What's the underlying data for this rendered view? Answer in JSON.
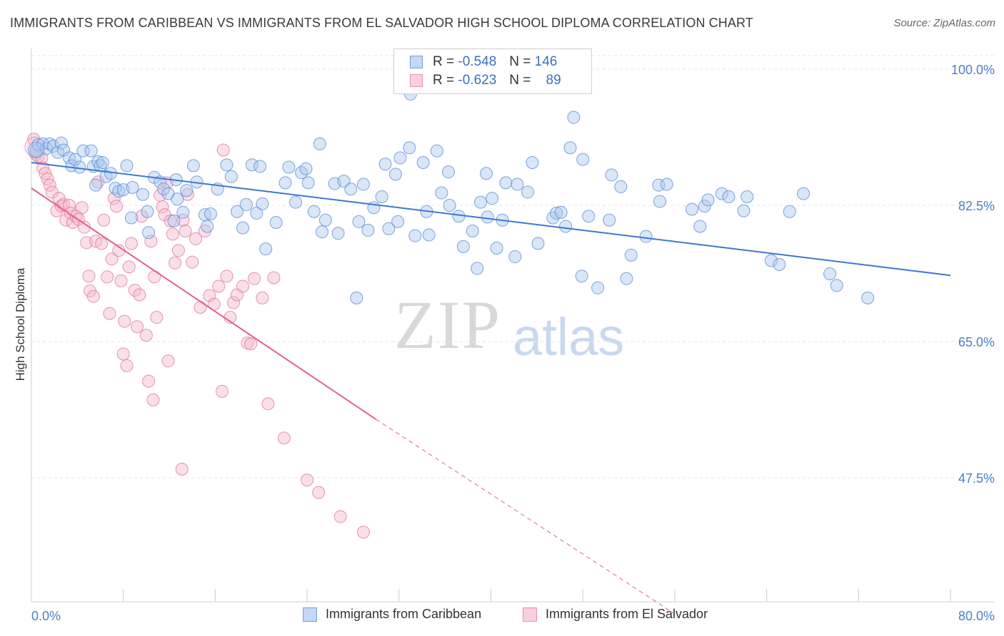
{
  "header": {
    "title": "IMMIGRANTS FROM CARIBBEAN VS IMMIGRANTS FROM EL SALVADOR HIGH SCHOOL DIPLOMA CORRELATION CHART",
    "source": "Source: ZipAtlas.com"
  },
  "watermark": {
    "zip": "ZIP",
    "atlas": "atlas"
  },
  "legend": {
    "rows": [
      {
        "r_label": "R =",
        "r_value": "-0.548",
        "n_label": "N =",
        "n_value": "146"
      },
      {
        "r_label": "R =",
        "r_value": "-0.623",
        "n_label": "N =",
        "n_value": "89"
      }
    ]
  },
  "bottom_legend": {
    "items": [
      {
        "label": "Immigrants from Caribbean"
      },
      {
        "label": "Immigrants from El Salvador"
      }
    ]
  },
  "colors": {
    "blue_fill": "#aac8f0",
    "blue_stroke": "#5b8fd6",
    "blue_line": "#3c78d0",
    "pink_fill": "#f6b8cb",
    "pink_stroke": "#e0799c",
    "pink_line": "#e0628f",
    "grid": "#e6e6e6",
    "axis_text": "#4a7fc9"
  },
  "chart_data": {
    "type": "scatter",
    "title": "IMMIGRANTS FROM CARIBBEAN VS IMMIGRANTS FROM EL SALVADOR HIGH SCHOOL DIPLOMA CORRELATION CHART",
    "xlabel": "",
    "ylabel": "High School Diploma",
    "xlim": [
      0,
      80
    ],
    "ylim": [
      30,
      102
    ],
    "x_tick_labels": [
      "0.0%",
      "80.0%"
    ],
    "y_tick_labels": [
      "100.0%",
      "82.5%",
      "65.0%",
      "47.5%"
    ],
    "y_ticks": [
      100,
      82.5,
      65,
      47.5
    ],
    "grid": true,
    "legend_position": "top-center",
    "series": [
      {
        "name": "Immigrants from Caribbean",
        "r": -0.548,
        "n": 146,
        "trend": {
          "x": [
            0,
            80
          ],
          "y": [
            88.0,
            73.5
          ]
        },
        "points": [
          [
            0.4,
            89.5
          ],
          [
            0.6,
            90.3
          ],
          [
            1.0,
            90.4
          ],
          [
            1.3,
            89.8
          ],
          [
            1.6,
            90.4
          ],
          [
            1.9,
            90.1
          ],
          [
            2.3,
            89.3
          ],
          [
            2.6,
            90.5
          ],
          [
            2.8,
            89.6
          ],
          [
            3.3,
            88.6
          ],
          [
            3.5,
            87.6
          ],
          [
            3.8,
            88.4
          ],
          [
            4.2,
            87.4
          ],
          [
            4.5,
            89.5
          ],
          [
            5.2,
            89.5
          ],
          [
            5.4,
            87.5
          ],
          [
            5.6,
            85.1
          ],
          [
            5.8,
            88.1
          ],
          [
            6.0,
            87.6
          ],
          [
            6.2,
            88.0
          ],
          [
            6.5,
            86.2
          ],
          [
            6.9,
            86.6
          ],
          [
            7.3,
            84.7
          ],
          [
            7.6,
            84.3
          ],
          [
            8.0,
            84.5
          ],
          [
            8.3,
            87.6
          ],
          [
            8.8,
            84.8
          ],
          [
            8.7,
            80.9
          ],
          [
            9.7,
            83.9
          ],
          [
            10.1,
            81.7
          ],
          [
            10.2,
            79.0
          ],
          [
            10.7,
            86.1
          ],
          [
            11.2,
            85.5
          ],
          [
            11.5,
            84.6
          ],
          [
            11.9,
            84.0
          ],
          [
            12.4,
            80.5
          ],
          [
            12.6,
            85.8
          ],
          [
            12.7,
            83.3
          ],
          [
            13.2,
            81.6
          ],
          [
            13.5,
            84.4
          ],
          [
            14.1,
            87.6
          ],
          [
            14.4,
            85.5
          ],
          [
            15.1,
            81.3
          ],
          [
            15.3,
            79.8
          ],
          [
            15.6,
            81.4
          ],
          [
            16.2,
            84.6
          ],
          [
            17.0,
            87.7
          ],
          [
            17.4,
            86.2
          ],
          [
            17.9,
            81.7
          ],
          [
            18.4,
            79.6
          ],
          [
            18.7,
            82.6
          ],
          [
            19.2,
            87.7
          ],
          [
            19.6,
            81.5
          ],
          [
            19.9,
            87.5
          ],
          [
            20.1,
            82.7
          ],
          [
            20.4,
            76.9
          ],
          [
            21.3,
            80.3
          ],
          [
            22.1,
            85.4
          ],
          [
            22.4,
            87.4
          ],
          [
            23.0,
            82.9
          ],
          [
            23.5,
            86.7
          ],
          [
            23.9,
            87.2
          ],
          [
            24.1,
            85.4
          ],
          [
            24.6,
            81.7
          ],
          [
            25.1,
            90.4
          ],
          [
            25.3,
            79.1
          ],
          [
            25.6,
            80.6
          ],
          [
            26.4,
            85.3
          ],
          [
            26.7,
            78.9
          ],
          [
            27.2,
            85.6
          ],
          [
            27.8,
            84.6
          ],
          [
            28.3,
            70.6
          ],
          [
            28.5,
            80.4
          ],
          [
            28.9,
            85.2
          ],
          [
            29.3,
            79.3
          ],
          [
            29.8,
            82.2
          ],
          [
            30.5,
            83.6
          ],
          [
            30.8,
            87.8
          ],
          [
            31.1,
            79.5
          ],
          [
            31.7,
            86.5
          ],
          [
            31.9,
            80.4
          ],
          [
            32.1,
            88.6
          ],
          [
            32.9,
            89.9
          ],
          [
            33.0,
            96.8
          ],
          [
            33.4,
            78.6
          ],
          [
            34.1,
            88.0
          ],
          [
            34.4,
            81.7
          ],
          [
            34.6,
            78.7
          ],
          [
            35.3,
            89.5
          ],
          [
            35.7,
            84.1
          ],
          [
            36.3,
            86.8
          ],
          [
            36.4,
            82.5
          ],
          [
            37.2,
            81.1
          ],
          [
            37.6,
            77.2
          ],
          [
            38.4,
            79.2
          ],
          [
            38.8,
            74.4
          ],
          [
            39.1,
            82.9
          ],
          [
            39.6,
            86.6
          ],
          [
            39.7,
            81.0
          ],
          [
            40.1,
            83.4
          ],
          [
            40.5,
            77.0
          ],
          [
            41.0,
            80.6
          ],
          [
            41.3,
            85.4
          ],
          [
            42.1,
            75.9
          ],
          [
            42.3,
            85.2
          ],
          [
            43.2,
            84.2
          ],
          [
            43.6,
            88.0
          ],
          [
            44.1,
            77.6
          ],
          [
            45.4,
            80.9
          ],
          [
            45.7,
            81.5
          ],
          [
            46.1,
            81.6
          ],
          [
            46.5,
            79.8
          ],
          [
            46.9,
            89.9
          ],
          [
            47.2,
            93.8
          ],
          [
            47.9,
            73.4
          ],
          [
            48.0,
            88.4
          ],
          [
            48.5,
            81.1
          ],
          [
            49.3,
            71.9
          ],
          [
            50.3,
            80.6
          ],
          [
            50.5,
            86.4
          ],
          [
            51.3,
            84.9
          ],
          [
            51.8,
            73.1
          ],
          [
            52.2,
            76.1
          ],
          [
            53.5,
            78.5
          ],
          [
            54.6,
            85.1
          ],
          [
            54.7,
            83.0
          ],
          [
            55.3,
            85.2
          ],
          [
            57.5,
            82.0
          ],
          [
            58.2,
            79.8
          ],
          [
            58.6,
            82.4
          ],
          [
            58.9,
            83.2
          ],
          [
            60.1,
            84.0
          ],
          [
            60.7,
            83.6
          ],
          [
            62.0,
            81.8
          ],
          [
            62.3,
            83.6
          ],
          [
            64.4,
            75.4
          ],
          [
            65.1,
            74.9
          ],
          [
            66.0,
            81.7
          ],
          [
            67.2,
            84.0
          ],
          [
            69.5,
            73.7
          ],
          [
            70.1,
            72.2
          ],
          [
            72.8,
            70.6
          ]
        ]
      },
      {
        "name": "Immigrants from El Salvador",
        "r": -0.623,
        "n": 89,
        "trend": {
          "x": [
            0,
            30
          ],
          "y": [
            84.7,
            55.0
          ]
        },
        "trend_dashed": {
          "x": [
            30,
            56.0
          ],
          "y": [
            55.0,
            30.0
          ]
        },
        "points": [
          [
            0.2,
            91.0
          ],
          [
            0.4,
            89.0
          ],
          [
            0.6,
            88.8
          ],
          [
            0.9,
            88.6
          ],
          [
            1.0,
            87.3
          ],
          [
            1.2,
            86.6
          ],
          [
            1.4,
            85.9
          ],
          [
            1.6,
            85.1
          ],
          [
            1.8,
            84.2
          ],
          [
            2.2,
            81.8
          ],
          [
            2.4,
            83.4
          ],
          [
            2.6,
            82.4
          ],
          [
            2.8,
            82.6
          ],
          [
            3.0,
            80.6
          ],
          [
            3.3,
            82.5
          ],
          [
            3.4,
            81.5
          ],
          [
            3.6,
            80.3
          ],
          [
            3.9,
            81.1
          ],
          [
            4.1,
            80.7
          ],
          [
            4.4,
            82.2
          ],
          [
            4.6,
            79.7
          ],
          [
            4.8,
            77.7
          ],
          [
            5.0,
            73.4
          ],
          [
            5.1,
            71.5
          ],
          [
            5.4,
            70.8
          ],
          [
            5.6,
            77.9
          ],
          [
            5.8,
            85.5
          ],
          [
            6.1,
            77.6
          ],
          [
            6.3,
            80.6
          ],
          [
            6.6,
            73.3
          ],
          [
            6.8,
            68.6
          ],
          [
            7.0,
            75.6
          ],
          [
            7.2,
            83.4
          ],
          [
            7.4,
            82.4
          ],
          [
            7.6,
            76.7
          ],
          [
            7.8,
            72.8
          ],
          [
            8.1,
            67.6
          ],
          [
            8.3,
            61.9
          ],
          [
            8.5,
            74.6
          ],
          [
            8.7,
            77.6
          ],
          [
            9.0,
            71.6
          ],
          [
            9.2,
            66.9
          ],
          [
            9.4,
            71.0
          ],
          [
            9.6,
            81.1
          ],
          [
            10.0,
            65.8
          ],
          [
            10.2,
            59.9
          ],
          [
            10.4,
            77.9
          ],
          [
            10.7,
            73.3
          ],
          [
            10.9,
            68.1
          ],
          [
            11.2,
            83.8
          ],
          [
            11.4,
            82.3
          ],
          [
            11.6,
            81.3
          ],
          [
            11.8,
            85.4
          ],
          [
            12.1,
            80.5
          ],
          [
            12.3,
            78.8
          ],
          [
            12.5,
            75.1
          ],
          [
            12.8,
            76.7
          ],
          [
            13.2,
            80.6
          ],
          [
            13.4,
            79.2
          ],
          [
            13.6,
            83.9
          ],
          [
            14.0,
            75.2
          ],
          [
            14.3,
            78.2
          ],
          [
            14.7,
            69.4
          ],
          [
            15.1,
            79.2
          ],
          [
            15.5,
            70.9
          ],
          [
            15.9,
            69.8
          ],
          [
            16.3,
            72.1
          ],
          [
            16.7,
            89.6
          ],
          [
            17.0,
            73.4
          ],
          [
            17.3,
            68.1
          ],
          [
            17.6,
            70.0
          ],
          [
            17.9,
            71.0
          ],
          [
            18.4,
            72.1
          ],
          [
            18.8,
            64.8
          ],
          [
            19.1,
            64.7
          ],
          [
            19.4,
            73.1
          ],
          [
            20.1,
            70.6
          ],
          [
            20.6,
            57.0
          ],
          [
            21.1,
            73.2
          ],
          [
            22.0,
            52.6
          ],
          [
            24.0,
            47.2
          ],
          [
            25.0,
            45.6
          ],
          [
            26.9,
            42.5
          ],
          [
            28.9,
            40.5
          ],
          [
            10.6,
            57.5
          ],
          [
            11.9,
            62.5
          ],
          [
            13.1,
            48.6
          ],
          [
            16.6,
            58.6
          ],
          [
            8.0,
            63.4
          ]
        ]
      }
    ]
  }
}
